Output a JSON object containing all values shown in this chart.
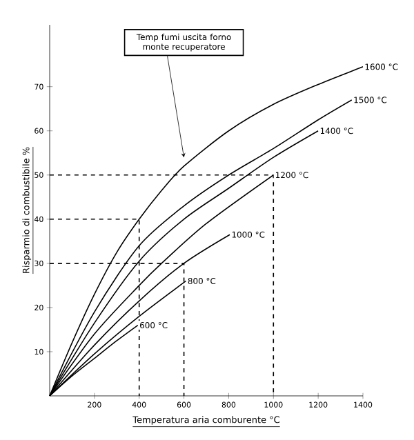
{
  "chart_data": {
    "type": "line",
    "xlabel": "Temperatura aria comburente °C",
    "ylabel": "Risparmio di combustibile %",
    "xlim": [
      0,
      1400
    ],
    "ylim": [
      0,
      84
    ],
    "xticks": [
      200,
      400,
      600,
      800,
      1000,
      1200,
      1400
    ],
    "yticks": [
      10,
      20,
      30,
      40,
      50,
      60,
      70
    ],
    "marker": "none",
    "series": [
      {
        "color": "#000000",
        "x": [
          0,
          100,
          200,
          300,
          394
        ],
        "values": [
          0,
          4.5,
          8.5,
          12.5,
          16
        ]
      },
      {
        "color": "#000000",
        "x": [
          0,
          200,
          400,
          609
        ],
        "values": [
          0,
          9.5,
          18,
          26
        ]
      },
      {
        "color": "#000000",
        "x": [
          0,
          200,
          400,
          600,
          805
        ],
        "values": [
          0,
          11.5,
          21.5,
          30,
          36.5
        ]
      },
      {
        "color": "#000000",
        "x": [
          0,
          200,
          400,
          500,
          700,
          1000
        ],
        "values": [
          0,
          14,
          25,
          30,
          39,
          50
        ]
      },
      {
        "color": "#000000",
        "x": [
          0,
          200,
          400,
          600,
          800,
          1000,
          1200
        ],
        "values": [
          0,
          16.5,
          30.5,
          40,
          47,
          54,
          60
        ]
      },
      {
        "color": "#000000",
        "x": [
          0,
          200,
          400,
          600,
          800,
          1000,
          1200,
          1350
        ],
        "values": [
          0,
          19,
          34,
          43,
          50,
          56,
          62.5,
          67
        ]
      },
      {
        "color": "#000000",
        "x": [
          0,
          100,
          200,
          300,
          400,
          500,
          600,
          800,
          1000,
          1200,
          1400
        ],
        "values": [
          0,
          12,
          23,
          32.5,
          40,
          46.5,
          52,
          60,
          66,
          70.5,
          74.5
        ]
      },
      {
        "color": "#000000",
        "line_style": "dashed",
        "x": [
          0,
          400,
          400
        ],
        "values": [
          40,
          40,
          0
        ]
      },
      {
        "color": "#000000",
        "line_style": "dashed",
        "x": [
          0,
          600,
          600
        ],
        "values": [
          30,
          30,
          0
        ]
      },
      {
        "color": "#000000",
        "line_style": "dashed",
        "x": [
          0,
          1000,
          1000
        ],
        "values": [
          50,
          50,
          0
        ]
      }
    ],
    "annotations": [
      {
        "text": "600 °C",
        "x": 394,
        "y": 16
      },
      {
        "text": "800 °C",
        "x": 609,
        "y": 26
      },
      {
        "text": "1000 °C",
        "x": 805,
        "y": 36.5
      },
      {
        "text": "1200 °C",
        "x": 1000,
        "y": 50
      },
      {
        "text": "1400 °C",
        "x": 1200,
        "y": 60
      },
      {
        "text": "1500 °C",
        "x": 1350,
        "y": 67
      },
      {
        "text": "1600 °C",
        "x": 1400,
        "y": 74.5
      },
      {
        "text": "Temp fumi uscita forno monte recuperatore",
        "x": 600,
        "y": 54
      }
    ]
  }
}
